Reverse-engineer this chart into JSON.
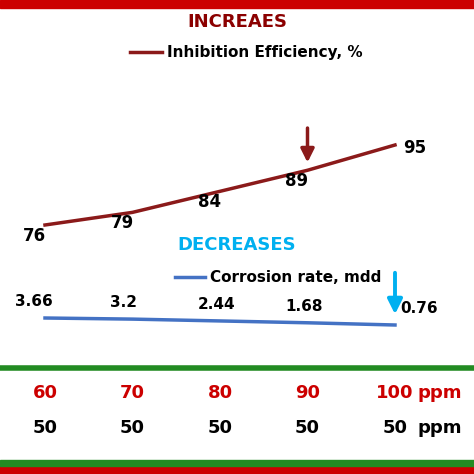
{
  "x_values": [
    60,
    70,
    80,
    90,
    100
  ],
  "inhibition_values": [
    76,
    79,
    84,
    89,
    95
  ],
  "corrosion_values": [
    3.66,
    3.2,
    2.44,
    1.68,
    0.76
  ],
  "inhibition_color": "#8B1A1A",
  "corrosion_color": "#4472C4",
  "inhibition_label": "Inhibition Efficiency, %",
  "corrosion_label": "Corrosion rate, mdd",
  "increases_text": "INCREАES",
  "decreases_text": "DECREASES",
  "increases_color": "#8B0000",
  "decreases_color": "#00B0F0",
  "row1_labels": [
    "60",
    "70",
    "80",
    "90",
    "100",
    "ppm"
  ],
  "row2_labels": [
    "50",
    "50",
    "50",
    "50",
    "50",
    "ppm"
  ],
  "row1_color": "#CC0000",
  "row2_color": "#000000",
  "border_top_color": "#CC0000",
  "border_bottom_color": "#228B22",
  "background_color": "#FFFFFF",
  "arrow_dark_red": "#8B1A1A",
  "arrow_cyan": "#00B0F0",
  "border_thickness": 8
}
